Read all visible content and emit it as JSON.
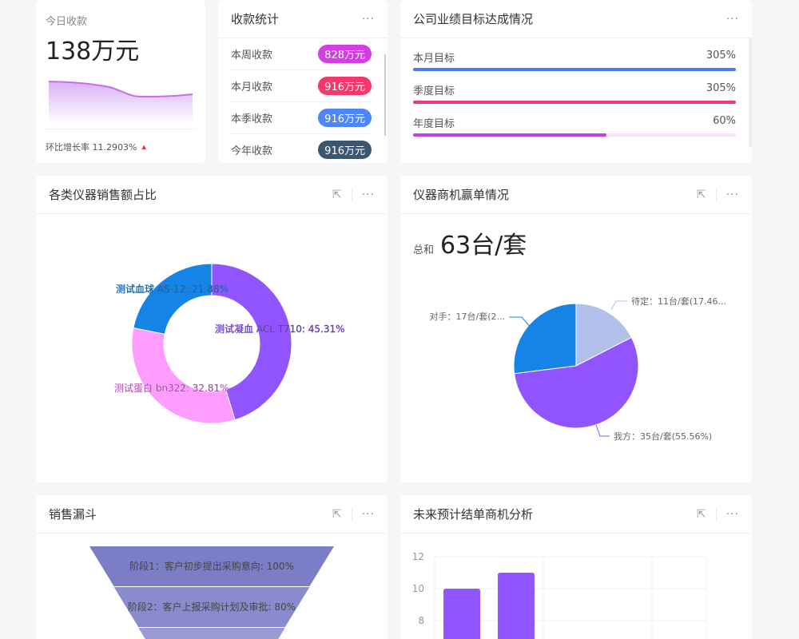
{
  "today": {
    "label": "今日收款",
    "value": "138万元",
    "growth": "环比增长率 11.2903%",
    "trend_icon": "triangle-up-icon"
  },
  "collection": {
    "title": "收款统计",
    "items": [
      {
        "label": "本周收款",
        "value": "828万元",
        "color": "#d23ee3"
      },
      {
        "label": "本月收款",
        "value": "916万元",
        "color": "#f5386b"
      },
      {
        "label": "本季收款",
        "value": "916万元",
        "color": "#4f86f7"
      },
      {
        "label": "今年收款",
        "value": "916万元",
        "color": "#3d5670"
      }
    ]
  },
  "targets": {
    "title": "公司业绩目标达成情况",
    "items": [
      {
        "label": "本月目标",
        "value": "305%",
        "pct": 100,
        "color": "#4a7cf0",
        "track": "#e3ebfd"
      },
      {
        "label": "季度目标",
        "value": "305%",
        "pct": 100,
        "color": "#f5386b",
        "track": "#fde1e8"
      },
      {
        "label": "年度目标",
        "value": "60%",
        "pct": 60,
        "color": "#c63ee6",
        "track": "#f7e1fb"
      }
    ]
  },
  "donut": {
    "title": "各类仪器销售额占比",
    "chart_data": {
      "type": "pie",
      "slices": [
        {
          "name": "测试凝血 ACL T710",
          "value": 45.31,
          "label": "测试凝血 ACL T710: 45.31%",
          "color": "#9055ff"
        },
        {
          "name": "测试蛋白 bn322",
          "value": 32.81,
          "label": "测试蛋白 bn322: 32.81%",
          "color": "#ff9cff"
        },
        {
          "name": "测试血球 AS-12",
          "value": 21.88,
          "label": "测试血球 AS-12: 21.88%",
          "color": "#1684e6"
        }
      ]
    }
  },
  "wins": {
    "title": "仪器商机赢单情况",
    "total_label": "总和",
    "total_value": "63台/套",
    "chart_data": {
      "type": "pie",
      "slices": [
        {
          "name": "待定",
          "value": 11,
          "label": "待定：11台/套(17.46...",
          "color": "#b3c0ec"
        },
        {
          "name": "我方",
          "value": 35,
          "label": "我方：35台/套(55.56%)",
          "color": "#9055ff"
        },
        {
          "name": "对手",
          "value": 17,
          "label": "对手：17台/套(2...",
          "color": "#1684e6"
        }
      ]
    }
  },
  "funnel": {
    "title": "销售漏斗",
    "chart_data": {
      "type": "funnel",
      "stages": [
        {
          "label": "阶段1：客户初步提出采购意向: 100%",
          "value": 100,
          "color": "#7b7dc6"
        },
        {
          "label": "阶段2：客户上报采购计划及审批: 80%",
          "value": 80,
          "color": "#898bcc"
        },
        {
          "label": "",
          "value": 60,
          "color": "#9a9bd3"
        }
      ]
    }
  },
  "forecast": {
    "title": "未来预计结单商机分析",
    "chart_data": {
      "type": "bar",
      "values": [
        10,
        11
      ],
      "color": "#9055ff",
      "yticks": [
        "12",
        "10",
        "8"
      ],
      "ylim_visible": [
        8,
        12
      ]
    }
  }
}
